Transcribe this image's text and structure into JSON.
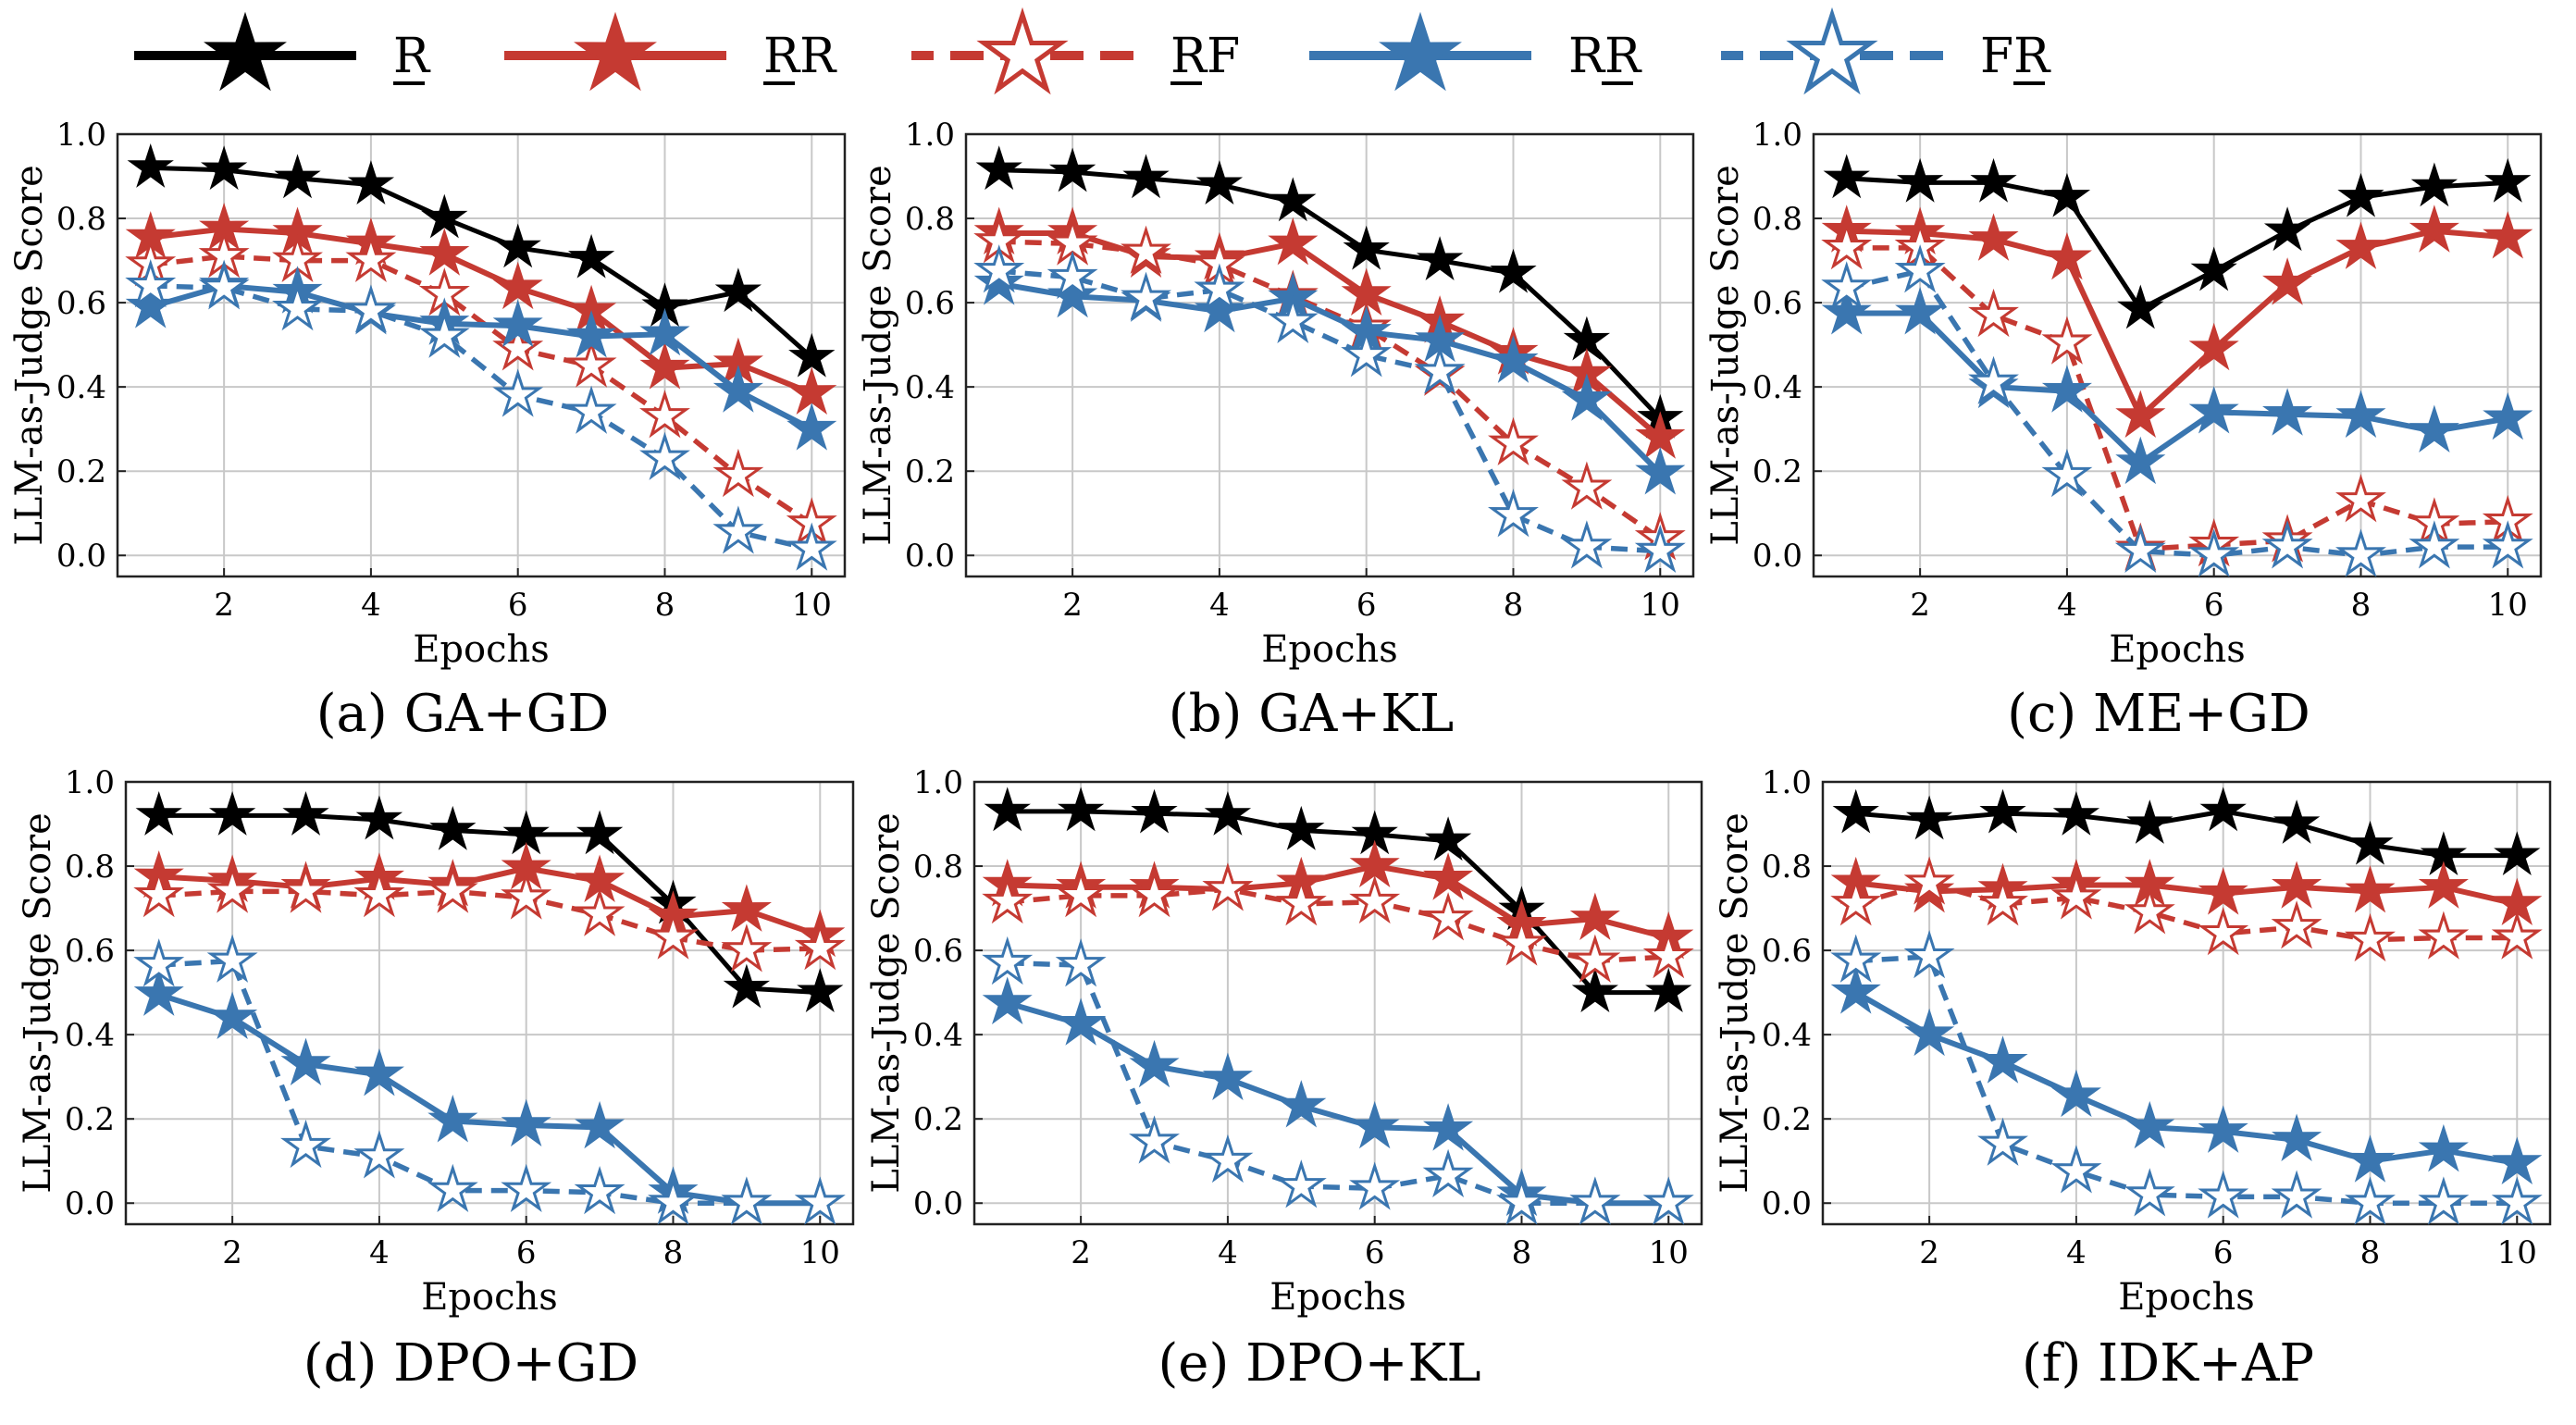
{
  "colors": {
    "retain": "#000000",
    "red": "#c53a32",
    "blue": "#3a76b0",
    "grid": "#c8c8c8"
  },
  "legend": [
    {
      "label": "RR",
      "underline_index": 0,
      "color_key": "red",
      "dashed": false,
      "filled": true,
      "series_key": "RR_red"
    },
    {
      "label": "RF",
      "underline_index": 0,
      "color_key": "red",
      "dashed": true,
      "filled": false,
      "series_key": "RF"
    },
    {
      "label": "RR",
      "underline_index": 1,
      "color_key": "blue",
      "dashed": false,
      "filled": true,
      "series_key": "RR_blue"
    },
    {
      "label": "FR",
      "underline_index": 1,
      "color_key": "blue",
      "dashed": true,
      "filled": false,
      "series_key": "FR"
    }
  ],
  "legend_first": {
    "label": "R",
    "underline_index": 0,
    "color_key": "retain",
    "dashed": false,
    "filled": true,
    "series_key": "R"
  },
  "chart_data": [
    {
      "type": "line",
      "caption": "(a) GA+GD",
      "xlabel": "Epochs",
      "ylabel": "LLM-as-Judge Score",
      "x": [
        1,
        2,
        3,
        4,
        5,
        6,
        7,
        8,
        9,
        10
      ],
      "xticks": [
        2,
        4,
        6,
        8,
        10
      ],
      "yticks": [
        "0.0",
        "0.2",
        "0.4",
        "0.6",
        "0.8",
        "1.0"
      ],
      "ylim": [
        -0.05,
        1.0
      ],
      "xlim": [
        0.55,
        10.45
      ],
      "grid": true,
      "series": [
        {
          "name": "R",
          "key": "R",
          "values": [
            0.92,
            0.915,
            0.895,
            0.88,
            0.8,
            0.73,
            0.705,
            0.59,
            0.625,
            0.47
          ]
        },
        {
          "name": "RR",
          "key": "RR_red",
          "values": [
            0.755,
            0.775,
            0.765,
            0.74,
            0.715,
            0.635,
            0.58,
            0.445,
            0.455,
            0.385
          ]
        },
        {
          "name": "RF",
          "key": "RF",
          "values": [
            0.69,
            0.71,
            0.7,
            0.7,
            0.62,
            0.49,
            0.45,
            0.33,
            0.19,
            0.075
          ]
        },
        {
          "name": "RR",
          "key": "RR_blue",
          "values": [
            0.59,
            0.64,
            0.625,
            0.575,
            0.55,
            0.545,
            0.52,
            0.525,
            0.39,
            0.3
          ]
        },
        {
          "name": "FR",
          "key": "FR",
          "values": [
            0.64,
            0.635,
            0.585,
            0.58,
            0.52,
            0.38,
            0.34,
            0.23,
            0.055,
            0.015
          ]
        }
      ]
    },
    {
      "type": "line",
      "caption": "(b) GA+KL",
      "xlabel": "Epochs",
      "ylabel": "LLM-as-Judge Score",
      "x": [
        1,
        2,
        3,
        4,
        5,
        6,
        7,
        8,
        9,
        10
      ],
      "xticks": [
        2,
        4,
        6,
        8,
        10
      ],
      "yticks": [
        "0.0",
        "0.2",
        "0.4",
        "0.6",
        "0.8",
        "1.0"
      ],
      "ylim": [
        -0.05,
        1.0
      ],
      "xlim": [
        0.55,
        10.45
      ],
      "grid": true,
      "series": [
        {
          "name": "R",
          "key": "R",
          "values": [
            0.915,
            0.91,
            0.895,
            0.88,
            0.84,
            0.725,
            0.7,
            0.67,
            0.51,
            0.325
          ]
        },
        {
          "name": "RR",
          "key": "RR_red",
          "values": [
            0.765,
            0.765,
            0.71,
            0.705,
            0.74,
            0.62,
            0.555,
            0.48,
            0.43,
            0.28
          ]
        },
        {
          "name": "RF",
          "key": "RF",
          "values": [
            0.745,
            0.74,
            0.72,
            0.69,
            0.615,
            0.54,
            0.43,
            0.265,
            0.16,
            0.04
          ]
        },
        {
          "name": "RR",
          "key": "RR_blue",
          "values": [
            0.645,
            0.615,
            0.605,
            0.58,
            0.61,
            0.53,
            0.51,
            0.46,
            0.37,
            0.195
          ]
        },
        {
          "name": "FR",
          "key": "FR",
          "values": [
            0.675,
            0.66,
            0.61,
            0.63,
            0.555,
            0.475,
            0.435,
            0.095,
            0.02,
            0.01
          ]
        }
      ]
    },
    {
      "type": "line",
      "caption": "(c) ME+GD",
      "xlabel": "Epochs",
      "ylabel": "LLM-as-Judge Score",
      "x": [
        1,
        2,
        3,
        4,
        5,
        6,
        7,
        8,
        9,
        10
      ],
      "xticks": [
        2,
        4,
        6,
        8,
        10
      ],
      "yticks": [
        "0.0",
        "0.2",
        "0.4",
        "0.6",
        "0.8",
        "1.0"
      ],
      "ylim": [
        -0.05,
        1.0
      ],
      "xlim": [
        0.55,
        10.45
      ],
      "grid": true,
      "series": [
        {
          "name": "R",
          "key": "R",
          "values": [
            0.895,
            0.885,
            0.885,
            0.85,
            0.585,
            0.675,
            0.77,
            0.85,
            0.875,
            0.885
          ]
        },
        {
          "name": "RR",
          "key": "RR_red",
          "values": [
            0.77,
            0.765,
            0.75,
            0.705,
            0.33,
            0.49,
            0.645,
            0.73,
            0.77,
            0.755
          ]
        },
        {
          "name": "RF",
          "key": "RF",
          "values": [
            0.73,
            0.73,
            0.57,
            0.505,
            0.015,
            0.025,
            0.035,
            0.13,
            0.075,
            0.08
          ]
        },
        {
          "name": "RR",
          "key": "RR_blue",
          "values": [
            0.575,
            0.575,
            0.4,
            0.39,
            0.22,
            0.34,
            0.335,
            0.33,
            0.295,
            0.325
          ]
        },
        {
          "name": "FR",
          "key": "FR",
          "values": [
            0.635,
            0.675,
            0.41,
            0.19,
            0.01,
            0.0,
            0.02,
            0.0,
            0.02,
            0.02
          ]
        }
      ]
    },
    {
      "type": "line",
      "caption": "(d) DPO+GD",
      "xlabel": "Epochs",
      "ylabel": "LLM-as-Judge Score",
      "x": [
        1,
        2,
        3,
        4,
        5,
        6,
        7,
        8,
        9,
        10
      ],
      "xticks": [
        2,
        4,
        6,
        8,
        10
      ],
      "yticks": [
        "0.0",
        "0.2",
        "0.4",
        "0.6",
        "0.8",
        "1.0"
      ],
      "ylim": [
        -0.05,
        1.0
      ],
      "xlim": [
        0.55,
        10.45
      ],
      "grid": true,
      "series": [
        {
          "name": "R",
          "key": "R",
          "values": [
            0.92,
            0.92,
            0.92,
            0.91,
            0.885,
            0.875,
            0.875,
            0.71,
            0.51,
            0.5
          ]
        },
        {
          "name": "RR",
          "key": "RR_red",
          "values": [
            0.775,
            0.765,
            0.75,
            0.77,
            0.755,
            0.795,
            0.765,
            0.68,
            0.695,
            0.635
          ]
        },
        {
          "name": "RF",
          "key": "RF",
          "values": [
            0.73,
            0.74,
            0.74,
            0.73,
            0.74,
            0.725,
            0.685,
            0.63,
            0.6,
            0.605
          ]
        },
        {
          "name": "RR",
          "key": "RR_blue",
          "values": [
            0.495,
            0.44,
            0.33,
            0.305,
            0.195,
            0.185,
            0.18,
            0.025,
            0.0,
            0.0
          ]
        },
        {
          "name": "FR",
          "key": "FR",
          "values": [
            0.565,
            0.575,
            0.135,
            0.11,
            0.03,
            0.03,
            0.025,
            0.0,
            0.0,
            0.0
          ]
        }
      ]
    },
    {
      "type": "line",
      "caption": "(e) DPO+KL",
      "xlabel": "Epochs",
      "ylabel": "LLM-as-Judge Score",
      "x": [
        1,
        2,
        3,
        4,
        5,
        6,
        7,
        8,
        9,
        10
      ],
      "xticks": [
        2,
        4,
        6,
        8,
        10
      ],
      "yticks": [
        "0.0",
        "0.2",
        "0.4",
        "0.6",
        "0.8",
        "1.0"
      ],
      "ylim": [
        -0.05,
        1.0
      ],
      "xlim": [
        0.55,
        10.45
      ],
      "grid": true,
      "series": [
        {
          "name": "R",
          "key": "R",
          "values": [
            0.93,
            0.93,
            0.925,
            0.92,
            0.885,
            0.875,
            0.86,
            0.695,
            0.5,
            0.5
          ]
        },
        {
          "name": "RR",
          "key": "RR_red",
          "values": [
            0.755,
            0.75,
            0.75,
            0.745,
            0.76,
            0.8,
            0.77,
            0.66,
            0.675,
            0.63
          ]
        },
        {
          "name": "RF",
          "key": "RF",
          "values": [
            0.715,
            0.73,
            0.73,
            0.745,
            0.71,
            0.715,
            0.675,
            0.615,
            0.575,
            0.585
          ]
        },
        {
          "name": "RR",
          "key": "RR_blue",
          "values": [
            0.475,
            0.425,
            0.325,
            0.295,
            0.23,
            0.18,
            0.175,
            0.02,
            0.0,
            0.0
          ]
        },
        {
          "name": "FR",
          "key": "FR",
          "values": [
            0.57,
            0.565,
            0.145,
            0.1,
            0.04,
            0.035,
            0.065,
            0.0,
            0.0,
            0.0
          ]
        }
      ]
    },
    {
      "type": "line",
      "caption": "(f) IDK+AP",
      "xlabel": "Epochs",
      "ylabel": "LLM-as-Judge Score",
      "x": [
        1,
        2,
        3,
        4,
        5,
        6,
        7,
        8,
        9,
        10
      ],
      "xticks": [
        2,
        4,
        6,
        8,
        10
      ],
      "yticks": [
        "0.0",
        "0.2",
        "0.4",
        "0.6",
        "0.8",
        "1.0"
      ],
      "ylim": [
        -0.05,
        1.0
      ],
      "xlim": [
        0.55,
        10.45
      ],
      "grid": true,
      "series": [
        {
          "name": "R",
          "key": "R",
          "values": [
            0.925,
            0.91,
            0.925,
            0.92,
            0.9,
            0.93,
            0.9,
            0.85,
            0.825,
            0.825
          ]
        },
        {
          "name": "RR",
          "key": "RR_red",
          "values": [
            0.76,
            0.74,
            0.745,
            0.755,
            0.755,
            0.735,
            0.75,
            0.74,
            0.75,
            0.71
          ]
        },
        {
          "name": "RF",
          "key": "RF",
          "values": [
            0.71,
            0.76,
            0.71,
            0.725,
            0.69,
            0.64,
            0.655,
            0.625,
            0.63,
            0.63
          ]
        },
        {
          "name": "RR",
          "key": "RR_blue",
          "values": [
            0.5,
            0.4,
            0.335,
            0.255,
            0.18,
            0.17,
            0.15,
            0.1,
            0.125,
            0.095
          ]
        },
        {
          "name": "FR",
          "key": "FR",
          "values": [
            0.575,
            0.585,
            0.14,
            0.075,
            0.02,
            0.015,
            0.015,
            0.0,
            0.0,
            0.0
          ]
        }
      ]
    }
  ]
}
